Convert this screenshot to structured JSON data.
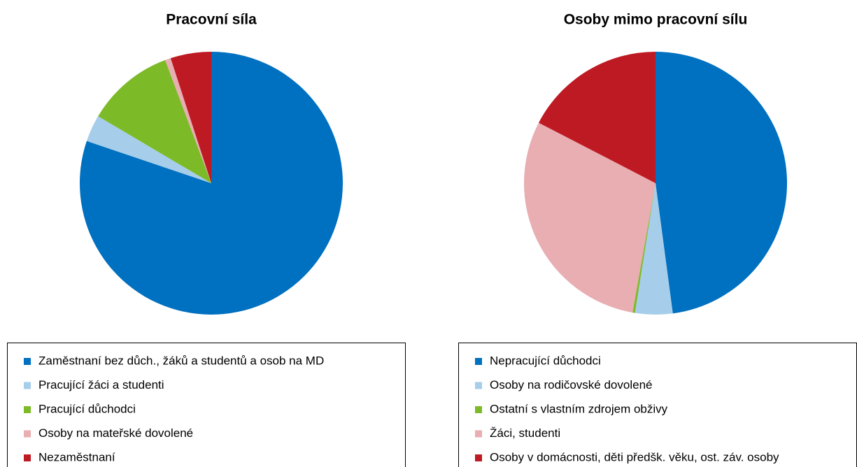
{
  "chart_data": [
    {
      "type": "pie",
      "title": "Pracovní síla",
      "categories": [
        "Zaměstnaní bez důch., žáků a studentů a osob na MD",
        "Pracující žáci a studenti",
        "Pracující důchodci",
        "Osoby na mateřské dovolené",
        "Nezaměstnaní"
      ],
      "values": [
        80.2,
        3.3,
        10.8,
        0.7,
        5.0
      ],
      "colors": [
        "#0070c0",
        "#a6cde9",
        "#7dba28",
        "#e8aeb2",
        "#be1a23"
      ]
    },
    {
      "type": "pie",
      "title": "Osoby mimo pracovní sílu",
      "categories": [
        "Nepracující důchodci",
        "Osoby na rodičovské dovolené",
        "Ostatní s vlastním zdrojem obživy",
        "Žáci, studenti",
        "Osoby v domácnosti, děti předšk. věku, ost. záv. osoby"
      ],
      "values": [
        47.9,
        4.6,
        0.3,
        29.8,
        17.4
      ],
      "colors": [
        "#0070c0",
        "#a6cde9",
        "#7dba28",
        "#e8aeb2",
        "#be1a23"
      ]
    }
  ]
}
